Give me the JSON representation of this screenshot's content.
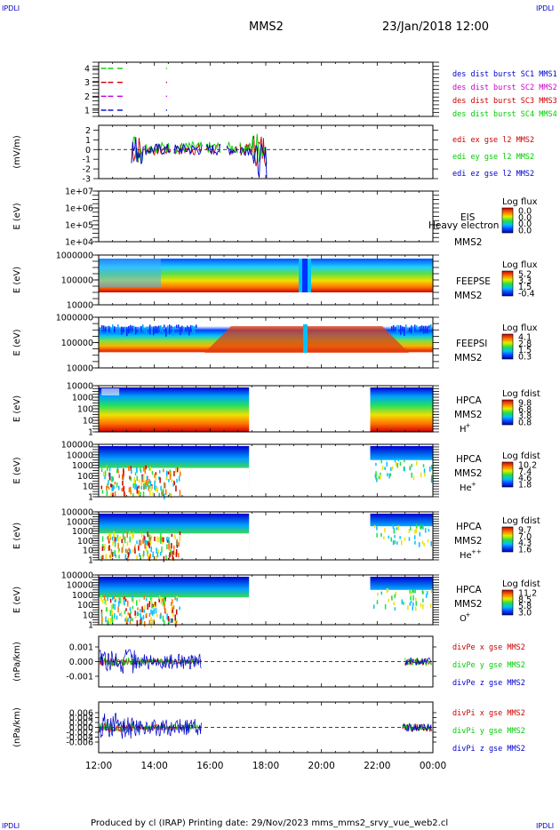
{
  "header": {
    "corner_left": "IPDLI",
    "corner_right": "IPDLI",
    "spacecraft": "MMS2",
    "date": "23/Jan/2018 12:00"
  },
  "footer": {
    "text": "Produced by cl (IRAP)   Printing date: 29/Nov/2023   mms_mms2_srvy_vue_web2.cl",
    "corner_left": "IPDLI",
    "corner_right": "IPDLI"
  },
  "colors": {
    "blue": "#0000cc",
    "green": "#00cc00",
    "red": "#cc0000",
    "magenta": "#cc00cc"
  },
  "chart_data": [
    {
      "type": "scatter",
      "panel": "burst",
      "yticks": [
        "1",
        "2",
        "3",
        "4"
      ],
      "ylim": [
        0.5,
        4.5
      ],
      "legend": [
        {
          "name": "des dist burst SC1 MMS1",
          "color": "#0000cc"
        },
        {
          "name": "des dist burst SC2 MMS2",
          "color": "#cc00cc"
        },
        {
          "name": "des dist burst SC3 MMS3",
          "color": "#cc0000"
        },
        {
          "name": "des dist burst SC4 MMS4",
          "color": "#00cc00"
        }
      ],
      "segments": [
        {
          "level": 4,
          "color": "#00cc00",
          "x": [
            "12:05",
            "12:20",
            "12:40",
            "14:25"
          ]
        },
        {
          "level": 3,
          "color": "#cc0000",
          "x": [
            "12:05",
            "12:20",
            "12:40",
            "14:25"
          ]
        },
        {
          "level": 2,
          "color": "#cc00cc",
          "x": [
            "12:05",
            "12:20",
            "12:40",
            "14:25"
          ]
        },
        {
          "level": 1,
          "color": "#0000cc",
          "x": [
            "12:05",
            "12:20",
            "12:40",
            "14:25"
          ]
        }
      ]
    },
    {
      "type": "line",
      "panel": "edi",
      "ylabel": "(mV/m)",
      "yticks": [
        "2",
        "1",
        "0",
        "-1",
        "-2",
        "-3"
      ],
      "ylim": [
        -3,
        2.5
      ],
      "legend": [
        {
          "name": "edi ex gse l2 MMS2",
          "color": "#cc0000"
        },
        {
          "name": "edi ey gse l2 MMS2",
          "color": "#00cc00"
        },
        {
          "name": "edi ez gse l2 MMS2",
          "color": "#0000cc"
        }
      ],
      "x_range": [
        "13:15",
        "18:05"
      ]
    },
    {
      "type": "heatmap",
      "panel": "eis",
      "ylabel": "E (eV)",
      "yticks": [
        "1e+07",
        "1e+06",
        "1e+05",
        "1e+04"
      ],
      "label": "EIS",
      "sublabel": "MMS2",
      "overlay": "Heavy electron to",
      "cbar_title": "Log flux",
      "cbar_ticks": [
        "0.0",
        "0.0",
        "0.0",
        "0.0"
      ]
    },
    {
      "type": "heatmap",
      "panel": "feepse",
      "ylabel": "E (eV)",
      "yticks": [
        "1000000",
        "100000",
        "10000"
      ],
      "label": "FEEPSE",
      "sublabel": "MMS2",
      "cbar_title": "Log flux",
      "cbar_ticks": [
        "5.2",
        "3.3",
        "1.5",
        "-0.4"
      ]
    },
    {
      "type": "heatmap",
      "panel": "feepsi",
      "ylabel": "E (eV)",
      "yticks": [
        "1000000",
        "100000",
        "10000"
      ],
      "label": "FEEPSI",
      "sublabel": "MMS2",
      "cbar_title": "Log flux",
      "cbar_ticks": [
        "4.1",
        "2.8",
        "1.5",
        "0.3"
      ]
    },
    {
      "type": "heatmap",
      "panel": "hpca_h",
      "ylabel": "E (eV)",
      "yticks": [
        "10000",
        "1000",
        "100",
        "10",
        "1"
      ],
      "label": "HPCA",
      "sublabel": "MMS2",
      "species": "H",
      "charge": "+",
      "cbar_title": "Log fdist",
      "cbar_ticks": [
        "9.8",
        "6.8",
        "3.8",
        "0.8"
      ]
    },
    {
      "type": "heatmap",
      "panel": "hpca_he1",
      "ylabel": "E (eV)",
      "yticks": [
        "100000",
        "10000",
        "1000",
        "100",
        "10",
        "1"
      ],
      "label": "HPCA",
      "sublabel": "MMS2",
      "species": "He",
      "charge": "+",
      "cbar_title": "Log fdist",
      "cbar_ticks": [
        "10.2",
        "7.4",
        "4.6",
        "1.8"
      ]
    },
    {
      "type": "heatmap",
      "panel": "hpca_he2",
      "ylabel": "E (eV)",
      "yticks": [
        "100000",
        "10000",
        "1000",
        "100",
        "10",
        "1"
      ],
      "label": "HPCA",
      "sublabel": "MMS2",
      "species": "He",
      "charge": "++",
      "cbar_title": "Log fdist",
      "cbar_ticks": [
        "9.7",
        "7.0",
        "4.3",
        "1.6"
      ]
    },
    {
      "type": "heatmap",
      "panel": "hpca_o",
      "ylabel": "E (eV)",
      "yticks": [
        "100000",
        "10000",
        "1000",
        "100",
        "10",
        "1"
      ],
      "label": "HPCA",
      "sublabel": "MMS2",
      "species": "O",
      "charge": "+",
      "cbar_title": "Log fdist",
      "cbar_ticks": [
        "11.2",
        "8.5",
        "5.8",
        "3.0"
      ]
    },
    {
      "type": "line",
      "panel": "divpe",
      "ylabel": "(nPa/km)",
      "yticks": [
        "0.001",
        "0.000",
        "-0.001"
      ],
      "legend": [
        {
          "name": "divPe x gse MMS2",
          "color": "#cc0000"
        },
        {
          "name": "divPe y gse MMS2",
          "color": "#00cc00"
        },
        {
          "name": "divPe z gse MMS2",
          "color": "#0000cc"
        }
      ]
    },
    {
      "type": "line",
      "panel": "divpi",
      "ylabel": "(nPa/km)",
      "yticks": [
        "0.006",
        "0.004",
        "0.002",
        "0.000",
        "-0.002",
        "-0.004",
        "-0.006"
      ],
      "legend": [
        {
          "name": "divPi x gse MMS2",
          "color": "#cc0000"
        },
        {
          "name": "divPi y gse MMS2",
          "color": "#00cc00"
        },
        {
          "name": "divPi z gse MMS2",
          "color": "#0000cc"
        }
      ]
    }
  ],
  "xaxis": {
    "ticks": [
      "12:00",
      "14:00",
      "16:00",
      "18:00",
      "20:00",
      "22:00",
      "00:00"
    ]
  }
}
